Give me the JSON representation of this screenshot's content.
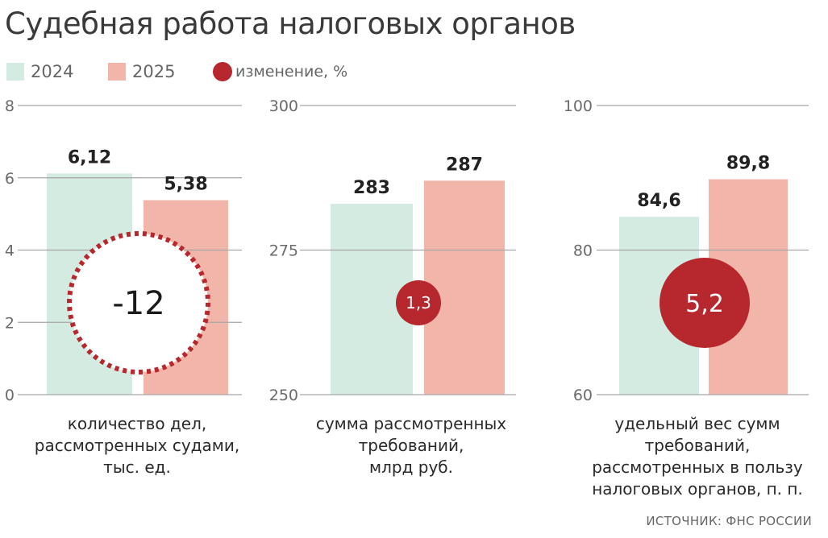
{
  "title": "Судебная работа налоговых органов",
  "legend": [
    {
      "label": "2024",
      "color": "#d4ebe1",
      "shape": "square"
    },
    {
      "label": "2025",
      "color": "#f2b5aa",
      "shape": "square"
    },
    {
      "label": "изменение, %",
      "color": "#b7282e",
      "shape": "circle"
    }
  ],
  "source": "ИСТОЧНИК: ФНС РОССИИ",
  "chart_data": [
    {
      "type": "bar",
      "categories": [
        "2024",
        "2025"
      ],
      "values": [
        6.12,
        5.38
      ],
      "value_labels": [
        "6,12",
        "5,38"
      ],
      "ylim": [
        0,
        8
      ],
      "y_ticks": [
        0,
        2,
        4,
        6,
        8
      ],
      "y_tick_labels": [
        "0",
        "2",
        "4",
        "6",
        "8"
      ],
      "xlabel": "количество дел, рассмотренных судами, тыс. ед.",
      "xlabel_lines": [
        "количество дел,",
        "рассмотренных судами,",
        "тыс. ед."
      ],
      "change": {
        "value": -12,
        "label": "-12",
        "style": "dotted-ring"
      },
      "grid": true
    },
    {
      "type": "bar",
      "categories": [
        "2024",
        "2025"
      ],
      "values": [
        283,
        287
      ],
      "value_labels": [
        "283",
        "287"
      ],
      "ylim": [
        250,
        300
      ],
      "y_ticks": [
        250,
        275,
        300
      ],
      "y_tick_labels": [
        "250",
        "275",
        "300"
      ],
      "xlabel": "сумма рассмотренных требований, млрд руб.",
      "xlabel_lines": [
        "сумма рассмотренных",
        "требований,",
        "млрд руб."
      ],
      "change": {
        "value": 1.3,
        "label": "1,3",
        "style": "filled-circle"
      },
      "grid": true
    },
    {
      "type": "bar",
      "categories": [
        "2024",
        "2025"
      ],
      "values": [
        84.6,
        89.8
      ],
      "value_labels": [
        "84,6",
        "89,8"
      ],
      "ylim": [
        60,
        100
      ],
      "y_ticks": [
        60,
        80,
        100
      ],
      "y_tick_labels": [
        "60",
        "80",
        "100"
      ],
      "xlabel": "удельный вес сумм требований, рассмотренных в пользу налоговых органов, п. п.",
      "xlabel_lines": [
        "удельный вес сумм",
        "требований,",
        "рассмотренных в пользу",
        "налоговых органов, п. п."
      ],
      "change": {
        "value": 5.2,
        "label": "5,2",
        "style": "filled-circle"
      },
      "grid": true
    }
  ]
}
